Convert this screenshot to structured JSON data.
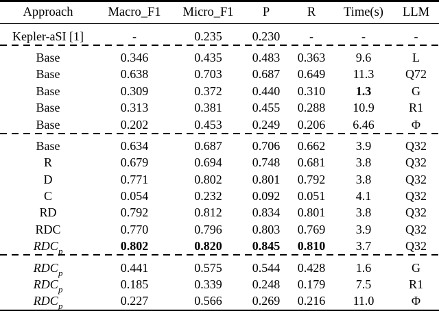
{
  "page": {
    "background_color": "#ffffff",
    "text_color": "#000000",
    "rule_color": "#000000"
  },
  "table": {
    "columns": [
      {
        "key": "approach",
        "label": "Approach"
      },
      {
        "key": "macro_f1",
        "label": "Macro_F1"
      },
      {
        "key": "micro_f1",
        "label": "Micro_F1"
      },
      {
        "key": "p",
        "label": "P"
      },
      {
        "key": "r",
        "label": "R"
      },
      {
        "key": "time",
        "label": "Time(s)"
      },
      {
        "key": "llm",
        "label": "LLM"
      }
    ],
    "groups": [
      {
        "rows": [
          {
            "approach": {
              "text": "Kepler-aSI [1]"
            },
            "values": [
              "-",
              "0.235",
              "0.230",
              "-",
              "-",
              "-"
            ],
            "bold": []
          }
        ]
      },
      {
        "rows": [
          {
            "approach": {
              "text": "Base"
            },
            "values": [
              "0.346",
              "0.435",
              "0.483",
              "0.363",
              "9.6",
              "L"
            ],
            "bold": []
          },
          {
            "approach": {
              "text": "Base"
            },
            "values": [
              "0.638",
              "0.703",
              "0.687",
              "0.649",
              "11.3",
              "Q72"
            ],
            "bold": []
          },
          {
            "approach": {
              "text": "Base"
            },
            "values": [
              "0.309",
              "0.372",
              "0.440",
              "0.310",
              "1.3",
              "G"
            ],
            "bold": [
              4
            ]
          },
          {
            "approach": {
              "text": "Base"
            },
            "values": [
              "0.313",
              "0.381",
              "0.455",
              "0.288",
              "10.9",
              "R1"
            ],
            "bold": []
          },
          {
            "approach": {
              "text": "Base"
            },
            "values": [
              "0.202",
              "0.453",
              "0.249",
              "0.206",
              "6.46",
              "Φ"
            ],
            "bold": []
          }
        ]
      },
      {
        "rows": [
          {
            "approach": {
              "text": "Base"
            },
            "values": [
              "0.634",
              "0.687",
              "0.706",
              "0.662",
              "3.9",
              "Q32"
            ],
            "bold": []
          },
          {
            "approach": {
              "text": "R"
            },
            "values": [
              "0.679",
              "0.694",
              "0.748",
              "0.681",
              "3.8",
              "Q32"
            ],
            "bold": []
          },
          {
            "approach": {
              "text": "D"
            },
            "values": [
              "0.771",
              "0.802",
              "0.801",
              "0.792",
              "3.8",
              "Q32"
            ],
            "bold": []
          },
          {
            "approach": {
              "text": "C"
            },
            "values": [
              "0.054",
              "0.232",
              "0.092",
              "0.051",
              "4.1",
              "Q32"
            ],
            "bold": []
          },
          {
            "approach": {
              "text": "RD"
            },
            "values": [
              "0.792",
              "0.812",
              "0.834",
              "0.801",
              "3.8",
              "Q32"
            ],
            "bold": []
          },
          {
            "approach": {
              "text": "RDC"
            },
            "values": [
              "0.770",
              "0.796",
              "0.803",
              "0.769",
              "3.9",
              "Q32"
            ],
            "bold": []
          },
          {
            "approach": {
              "text": "RDC",
              "sub": "p",
              "italic": true
            },
            "values": [
              "0.802",
              "0.820",
              "0.845",
              "0.810",
              "3.7",
              "Q32"
            ],
            "bold": [
              0,
              1,
              2,
              3
            ]
          }
        ]
      },
      {
        "rows": [
          {
            "approach": {
              "text": "RDC",
              "sub": "p",
              "italic": true
            },
            "values": [
              "0.441",
              "0.575",
              "0.544",
              "0.428",
              "1.6",
              "G"
            ],
            "bold": []
          },
          {
            "approach": {
              "text": "RDC",
              "sub": "p",
              "italic": true
            },
            "values": [
              "0.185",
              "0.339",
              "0.248",
              "0.179",
              "7.5",
              "R1"
            ],
            "bold": []
          },
          {
            "approach": {
              "text": "RDC",
              "sub": "p",
              "italic": true
            },
            "values": [
              "0.227",
              "0.566",
              "0.269",
              "0.216",
              "11.0",
              "Φ"
            ],
            "bold": []
          }
        ]
      }
    ]
  }
}
